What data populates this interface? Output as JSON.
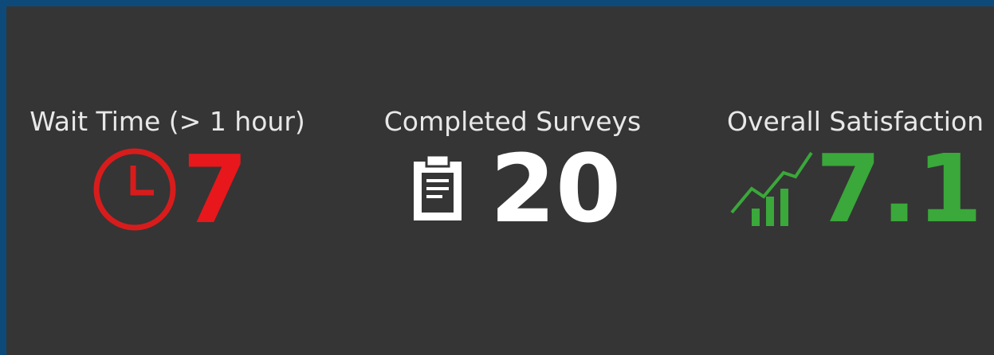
{
  "indicators": [
    {
      "label": "Wait Time (> 1 hour)",
      "value": "7"
    },
    {
      "label": "Completed Surveys",
      "value": "20"
    },
    {
      "label": "Overall Satisfaction",
      "value": "7.1"
    }
  ]
}
